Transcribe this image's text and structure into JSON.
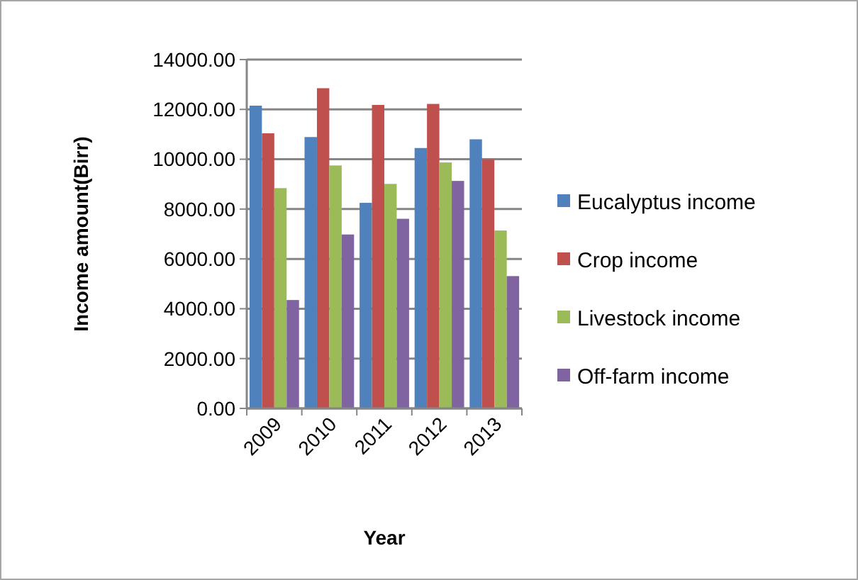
{
  "chart_data": {
    "type": "bar",
    "xlabel": "Year",
    "ylabel": "Income amount(Birr)",
    "categories": [
      "2009",
      "2010",
      "2011",
      "2012",
      "2013"
    ],
    "series": [
      {
        "name": "Eucalyptus income",
        "color": "#4f81bd",
        "values": [
          12150,
          10890,
          8250,
          10450,
          10800
        ]
      },
      {
        "name": "Crop income",
        "color": "#c0504d",
        "values": [
          11040,
          12850,
          12180,
          12220,
          10000
        ]
      },
      {
        "name": "Livestock income",
        "color": "#9bbb59",
        "values": [
          8840,
          9750,
          9010,
          9870,
          7140
        ]
      },
      {
        "name": "Off-farm income",
        "color": "#8064a2",
        "values": [
          4350,
          6980,
          7610,
          9130,
          5310
        ]
      }
    ],
    "ylim": [
      0,
      14000
    ],
    "yticks": [
      {
        "value": 0,
        "label": "0.00"
      },
      {
        "value": 2000,
        "label": "2000.00"
      },
      {
        "value": 4000,
        "label": "4000.00"
      },
      {
        "value": 6000,
        "label": "6000.00"
      },
      {
        "value": 8000,
        "label": "8000.00"
      },
      {
        "value": 10000,
        "label": "10000.00"
      },
      {
        "value": 12000,
        "label": "12000.00"
      },
      {
        "value": 14000,
        "label": "14000.00"
      }
    ],
    "grid": "y",
    "legend": "right"
  }
}
